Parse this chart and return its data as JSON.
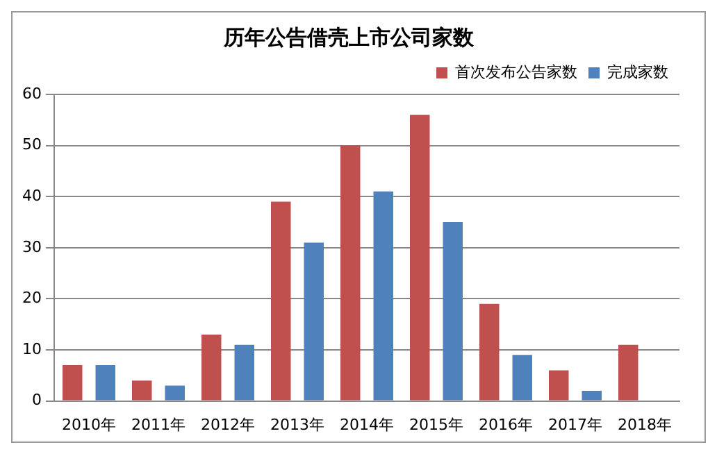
{
  "chart_data": {
    "type": "bar",
    "title": "历年公告借壳上市公司家数",
    "categories": [
      "2010年",
      "2011年",
      "2012年",
      "2013年",
      "2014年",
      "2015年",
      "2016年",
      "2017年",
      "2018年"
    ],
    "series": [
      {
        "name": "首次发布公告家数",
        "color": "#c0504d",
        "values": [
          7,
          4,
          13,
          39,
          50,
          56,
          19,
          6,
          11
        ]
      },
      {
        "name": "完成家数",
        "color": "#4f81bd",
        "values": [
          7,
          3,
          11,
          31,
          41,
          35,
          9,
          2,
          null
        ]
      }
    ],
    "ylim": [
      0,
      60
    ],
    "yticks": [
      0,
      10,
      20,
      30,
      40,
      50,
      60
    ],
    "grid": "y",
    "legend": "top"
  }
}
